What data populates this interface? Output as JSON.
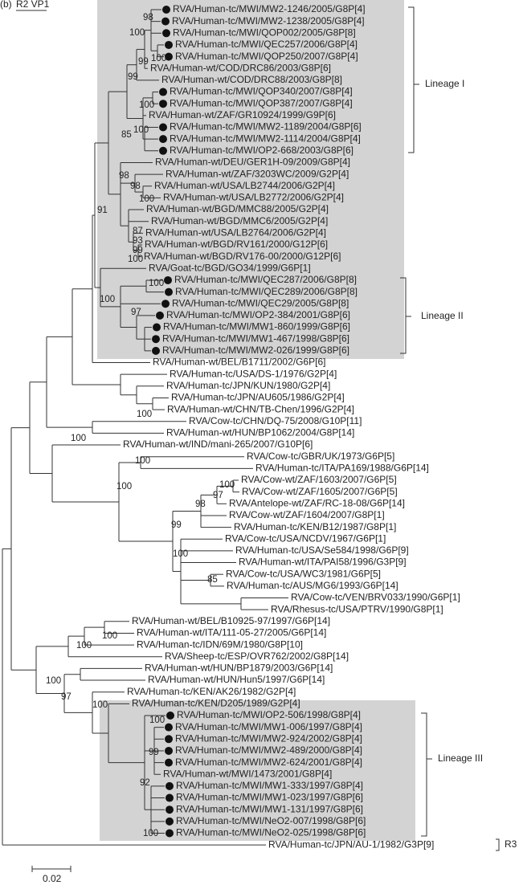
{
  "header": {
    "panel": "(b)",
    "title": "R2 VP1"
  },
  "leaves": [
    {
      "label": "RVA/Human-tc/MWI/MW2-1246/2005/G8P[4]",
      "marker": true
    },
    {
      "label": "RVA/Human-tc/MWI/MW2-1238/2005/G8P[4]",
      "marker": true
    },
    {
      "label": "RVA/Human-tc/MWI/QOP002/2005/G8P[8]",
      "marker": true
    },
    {
      "label": "RVA/Human-tc/MWI/QEC257/2006/G8P[4]",
      "marker": true
    },
    {
      "label": "RVA/Human-tc/MWI/QOP250/2007/G8P[4]",
      "marker": true
    },
    {
      "label": "RVA/Human-wt/COD/DRC86/2003/G8P[6]",
      "marker": false
    },
    {
      "label": "RVA/Human-wt/COD/DRC88/2003/G8P[8]",
      "marker": false
    },
    {
      "label": "RVA/Human-tc/MWI/QOP340/2007/G8P[4]",
      "marker": true
    },
    {
      "label": "RVA/Human-tc/MWI/QOP387/2007/G8P[4]",
      "marker": true
    },
    {
      "label": "RVA/Human-wt/ZAF/GR10924/1999/G9P[6]",
      "marker": false
    },
    {
      "label": "RVA/Human-tc/MWI/MW2-1189/2004/G8P[6]",
      "marker": true
    },
    {
      "label": "RVA/Human-tc/MWI/MW2-1114/2004/G8P[4]",
      "marker": true
    },
    {
      "label": "RVA/Human-tc/MWI/OP2-668/2003/G8P[6]",
      "marker": true
    },
    {
      "label": "RVA/Human-wt/DEU/GER1H-09/2009/G8P[4]",
      "marker": false
    },
    {
      "label": "RVA/Human-wt/ZAF/3203WC/2009/G2P[4]",
      "marker": false
    },
    {
      "label": "RVA/Human-wt/USA/LB2744/2006/G2P[4]",
      "marker": false
    },
    {
      "label": "RVA/Human-wt/USA/LB2772/2006/G2P[4]",
      "marker": false
    },
    {
      "label": "RVA/Human-wt/BGD/MMC88/2005/G2P[4]",
      "marker": false
    },
    {
      "label": "RVA/Human-wt/BGD/MMC6/2005/G2P[4]",
      "marker": false
    },
    {
      "label": "RVA/Human-wt/USA/LB2764/2006/G2P[4]",
      "marker": false
    },
    {
      "label": "RVA/Human-wt/BGD/RV161/2000/G12P[6]",
      "marker": false
    },
    {
      "label": "RVA/Human-wt/BGD/RV176-00/2000/G12P[6]",
      "marker": false
    },
    {
      "label": "RVA/Goat-tc/BGD/GO34/1999/G6P[1]",
      "marker": false
    },
    {
      "label": "RVA/Human-tc/MWI/QEC287/2006/G8P[8]",
      "marker": true
    },
    {
      "label": "RVA/Human-tc/MWI/QEC289/2006/G8P[8]",
      "marker": true
    },
    {
      "label": "RVA/Human-tc/MWI/QEC29/2005/G8P[8]",
      "marker": true
    },
    {
      "label": "RVA/Human-tc/MWI/OP2-384/2001/G8P[6]",
      "marker": true
    },
    {
      "label": "RVA/Human-tc/MWI/MW1-860/1999/G8P[6]",
      "marker": true
    },
    {
      "label": "RVA/Human-tc/MWI/MW1-467/1998/G8P[6]",
      "marker": true
    },
    {
      "label": "RVA/Human-tc/MWI/MW2-026/1999/G8P[6]",
      "marker": true
    },
    {
      "label": "RVA/Human-wt/BEL/B1711/2002/G6P[6]",
      "marker": false
    },
    {
      "label": "RVA/Human-tc/USA/DS-1/1976/G2P[4]",
      "marker": false
    },
    {
      "label": "RVA/Human-tc/JPN/KUN/1980/G2P[4]",
      "marker": false
    },
    {
      "label": "RVA/Human-tc/JPN/AU605/1986/G2P[4]",
      "marker": false
    },
    {
      "label": "RVA/Human-wt/CHN/TB-Chen/1996/G2P[4]",
      "marker": false
    },
    {
      "label": "RVA/Cow-tc/CHN/DQ-75/2008/G10P[11]",
      "marker": false
    },
    {
      "label": "RVA/Human-wt/HUN/BP1062/2004/G8P[14]",
      "marker": false
    },
    {
      "label": "RVA/Human-wt/IND/mani-265/2007/G10P[6]",
      "marker": false
    },
    {
      "label": "RVA/Cow-tc/GBR/UK/1973/G6P[5]",
      "marker": false
    },
    {
      "label": "RVA/Human-tc/ITA/PA169/1988/G6P[14]",
      "marker": false
    },
    {
      "label": "RVA/Cow-wt/ZAF/1603/2007/G6P[5]",
      "marker": false
    },
    {
      "label": "RVA/Cow-wt/ZAF/1605/2007/G6P[5]",
      "marker": false
    },
    {
      "label": "RVA/Antelope-wt/ZAF/RC-18-08/G6P[14]",
      "marker": false
    },
    {
      "label": "RVA/Cow-wt/ZAF/1604/2007/G8P[1]",
      "marker": false
    },
    {
      "label": "RVA/Human-tc/KEN/B12/1987/G8P[1]",
      "marker": false
    },
    {
      "label": "RVA/Cow-tc/USA/NCDV/1967/G6P[1]",
      "marker": false
    },
    {
      "label": "RVA/Human-tc/USA/Se584/1998/G6P[9]",
      "marker": false
    },
    {
      "label": "RVA/Human-wt/ITA/PAI58/1996/G3P[9]",
      "marker": false
    },
    {
      "label": "RVA/Cow-tc/USA/WC3/1981/G6P[5]",
      "marker": false
    },
    {
      "label": "RVA/Human-tc/AUS/MG6/1993/G6P[14]",
      "marker": false
    },
    {
      "label": "RVA/Cow-tc/VEN/BRV033/1990/G6P[1]",
      "marker": false
    },
    {
      "label": "RVA/Rhesus-tc/USA/PTRV/1990/G8P[1]",
      "marker": false
    },
    {
      "label": "RVA/Human-wt/BEL/B10925-97/1997/G6P[14]",
      "marker": false
    },
    {
      "label": "RVA/Human-wt/ITA/111-05-27/2005/G6P[14]",
      "marker": false
    },
    {
      "label": "RVA/Human-tc/IDN/69M/1980/G8P[10]",
      "marker": false
    },
    {
      "label": "RVA/Sheep-tc/ESP/OVR762/2002/G8P[14]",
      "marker": false
    },
    {
      "label": "RVA/Human-wt/HUN/BP1879/2003/G6P[14]",
      "marker": false
    },
    {
      "label": "RVA/Human-wt/HUN/Hun5/1997/G6P[14]",
      "marker": false
    },
    {
      "label": "RVA/Human-tc/KEN/AK26/1982/G2P[4]",
      "marker": false
    },
    {
      "label": "RVA/Human-tc/KEN/D205/1989/G2P[4]",
      "marker": false
    },
    {
      "label": "RVA/Human-tc/MWI/OP2-506/1998/G8P[4]",
      "marker": true
    },
    {
      "label": "RVA/Human-tc/MWI/MW1-006/1997/G8P[4]",
      "marker": true
    },
    {
      "label": "RVA/Human-tc/MWI/MW2-924/2002/G8P[4]",
      "marker": true
    },
    {
      "label": "RVA/Human-tc/MWI/MW2-489/2000/G8P[4]",
      "marker": true
    },
    {
      "label": "RVA/Human-tc/MWI/MW2-624/2001/G8P[4]",
      "marker": true
    },
    {
      "label": "RVA/Human-wt/MWI/1473/2001/G8P[4]",
      "marker": false
    },
    {
      "label": "RVA/Human-tc/MWI/MW1-333/1997/G8P[4]",
      "marker": true
    },
    {
      "label": "RVA/Human-tc/MWI/MW1-023/1997/G8P[6]",
      "marker": true
    },
    {
      "label": "RVA/Human-tc/MWI/MW1-131/1997/G8P[6]",
      "marker": true
    },
    {
      "label": "RVA/Human-tc/MWI/NeO2-007/1998/G8P[6]",
      "marker": true
    },
    {
      "label": "RVA/Human-tc/MWI/NeO2-025/1998/G8P[6]",
      "marker": true
    },
    {
      "label": "RVA/Human-tc/JPN/AU-1/1982/G3P[9]",
      "marker": false
    }
  ],
  "bootstrap": [
    98,
    100,
    99,
    100,
    99,
    100,
    85,
    100,
    98,
    98,
    100,
    91,
    87,
    93,
    99,
    100,
    100,
    100,
    97,
    100,
    100,
    100,
    100,
    97,
    98,
    99,
    100,
    100,
    85,
    100,
    100,
    100,
    97,
    100,
    100,
    99,
    92,
    100
  ],
  "lineages": [
    "Lineage I",
    "Lineage II",
    "Lineage III",
    "R3"
  ],
  "scale_bar": {
    "label": "0.02"
  }
}
